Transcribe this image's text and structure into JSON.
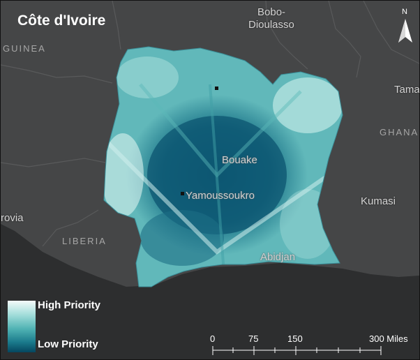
{
  "title": "Côte d'Ivoire",
  "cities": {
    "bobo_1": "Bobo-",
    "bobo_2": "Dioulasso",
    "tama": "Tama",
    "bouake": "Bouake",
    "yamoussoukro": "Yamoussoukro",
    "kumasi": "Kumasi",
    "abidjan": "Abidjan",
    "monrovia": "rovia"
  },
  "countries": {
    "guinea": "GUINEA",
    "ghana": "GHANA",
    "liberia": "LIBERIA"
  },
  "legend": {
    "high": "High Priority",
    "low": "Low Priority",
    "colors": [
      "#f4fbfa",
      "#a9e0dd",
      "#4fb2b3",
      "#1b7b8c",
      "#05465f"
    ]
  },
  "scale": {
    "t0": "0",
    "t75": "75",
    "t150": "150",
    "t300": "300 Miles"
  },
  "north": "N"
}
